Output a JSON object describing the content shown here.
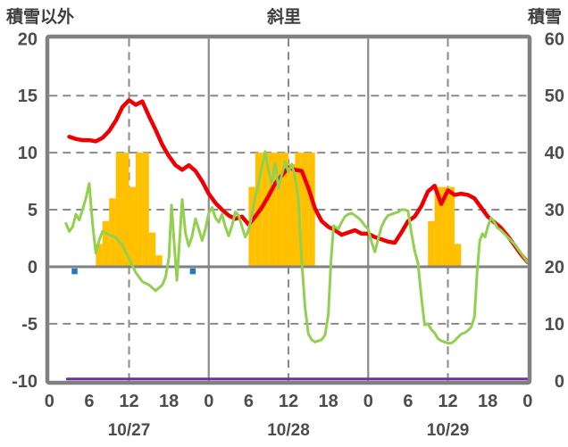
{
  "header": {
    "left_axis_title": "積雪以外",
    "title": "斜里",
    "right_axis_title": "積雪"
  },
  "colors": {
    "red_line": "#ef0000",
    "green_line": "#92d050",
    "orange_bars": "#ffc000",
    "blue_markers": "#2878be",
    "purple_line": "#7030a0",
    "frame_gray": "#808080",
    "grid_gray": "#8a8a8a",
    "label_gray": "#4d4d4d"
  },
  "chart_data": {
    "type": "line",
    "title": "斜里",
    "left_axis": {
      "title": "積雪以外",
      "tick_labels": [
        "20",
        "15",
        "10",
        "5",
        "0",
        "-5",
        "-10"
      ],
      "tick_values": [
        20,
        15,
        10,
        5,
        0,
        -5,
        -10
      ],
      "range": [
        -10,
        20
      ]
    },
    "right_axis": {
      "title": "積雪",
      "tick_labels": [
        "60",
        "50",
        "40",
        "30",
        "20",
        "10",
        "0"
      ],
      "tick_values": [
        60,
        50,
        40,
        30,
        20,
        10,
        0
      ],
      "range": [
        0,
        60
      ]
    },
    "x_axis": {
      "unit": "hour",
      "range_hours": [
        0,
        72
      ],
      "tick_hours": [
        0,
        6,
        12,
        18,
        24,
        30,
        36,
        42,
        48,
        54,
        60,
        66,
        72
      ],
      "tick_labels": [
        "0",
        "6",
        "12",
        "18",
        "0",
        "6",
        "12",
        "18",
        "0",
        "6",
        "12",
        "18",
        "0"
      ],
      "date_labels": [
        {
          "text": "10/27",
          "hour": 12
        },
        {
          "text": "10/28",
          "hour": 36
        },
        {
          "text": "10/29",
          "hour": 60
        }
      ]
    },
    "gridlines": {
      "dashed_y_left": [
        15,
        10,
        5,
        -5
      ],
      "solid_y_left": [
        0
      ],
      "dashed_x_hours": [
        12,
        36,
        60
      ],
      "solid_x_hours": [
        24,
        48
      ],
      "grid_on": true
    },
    "series": [
      {
        "name": "orange-bars",
        "kind": "bar",
        "axis": "left",
        "color": "#ffc000",
        "bar_end_hours": [
          8,
          9,
          10,
          11,
          12,
          13,
          14,
          15,
          16,
          17,
          31,
          32,
          33,
          34,
          35,
          36,
          37,
          38,
          39,
          40,
          58,
          59,
          60,
          61,
          62
        ],
        "bar_values": [
          2,
          4,
          6,
          10,
          10,
          7,
          10,
          10,
          3,
          1,
          7,
          10,
          10,
          10,
          10,
          10,
          9,
          10,
          10,
          10,
          4,
          7,
          7,
          7,
          2
        ]
      },
      {
        "name": "purple-snow-depth-line",
        "kind": "line",
        "axis": "right",
        "color": "#7030a0",
        "width": 3,
        "points": [
          [
            2.7,
            0
          ],
          [
            72,
            0
          ]
        ]
      },
      {
        "name": "red-line",
        "kind": "line",
        "axis": "left",
        "color": "#ef0000",
        "width": 4.5,
        "points": [
          [
            3,
            11.4
          ],
          [
            4,
            11.2
          ],
          [
            5,
            11.1
          ],
          [
            6,
            11.1
          ],
          [
            7,
            11.0
          ],
          [
            8,
            11.3
          ],
          [
            9,
            11.9
          ],
          [
            10,
            12.8
          ],
          [
            11,
            14.0
          ],
          [
            12,
            14.6
          ],
          [
            13,
            14.2
          ],
          [
            14,
            14.5
          ],
          [
            15,
            13.2
          ],
          [
            16,
            12.0
          ],
          [
            17,
            10.7
          ],
          [
            18,
            9.7
          ],
          [
            19,
            8.9
          ],
          [
            20,
            8.5
          ],
          [
            21,
            8.9
          ],
          [
            22,
            8.4
          ],
          [
            23,
            7.5
          ],
          [
            24,
            6.4
          ],
          [
            25,
            5.6
          ],
          [
            26,
            5.0
          ],
          [
            27,
            4.5
          ],
          [
            28,
            4.2
          ],
          [
            29,
            4.4
          ],
          [
            30,
            3.7
          ],
          [
            31,
            4.4
          ],
          [
            32,
            5.2
          ],
          [
            33,
            6.2
          ],
          [
            34,
            7.3
          ],
          [
            35,
            8.0
          ],
          [
            36,
            8.7
          ],
          [
            37,
            8.5
          ],
          [
            38,
            8.4
          ],
          [
            39,
            6.9
          ],
          [
            40,
            5.1
          ],
          [
            41,
            4.0
          ],
          [
            42,
            3.5
          ],
          [
            43,
            3.2
          ],
          [
            44,
            2.8
          ],
          [
            45,
            3.0
          ],
          [
            46,
            3.2
          ],
          [
            47,
            2.9
          ],
          [
            48,
            2.9
          ],
          [
            49,
            2.6
          ],
          [
            50,
            2.4
          ],
          [
            51,
            2.2
          ],
          [
            52,
            2.1
          ],
          [
            53,
            3.0
          ],
          [
            54,
            4.0
          ],
          [
            55,
            4.4
          ],
          [
            56,
            5.3
          ],
          [
            57,
            6.6
          ],
          [
            58,
            7.1
          ],
          [
            59,
            5.5
          ],
          [
            60,
            6.7
          ],
          [
            61,
            6.3
          ],
          [
            62,
            6.4
          ],
          [
            63,
            6.3
          ],
          [
            64,
            6.0
          ],
          [
            65,
            5.2
          ],
          [
            66,
            4.4
          ],
          [
            67,
            3.9
          ],
          [
            68,
            3.4
          ],
          [
            69,
            2.7
          ],
          [
            70,
            1.9
          ],
          [
            71,
            1.1
          ],
          [
            72,
            0.4
          ]
        ]
      },
      {
        "name": "green-line",
        "kind": "line",
        "axis": "left",
        "color": "#92d050",
        "width": 3,
        "points": [
          [
            2.5,
            3.8
          ],
          [
            3,
            3.1
          ],
          [
            3.5,
            3.5
          ],
          [
            4,
            4.6
          ],
          [
            4.5,
            4.1
          ],
          [
            5,
            5.0
          ],
          [
            5.5,
            6.0
          ],
          [
            6,
            7.3
          ],
          [
            6.5,
            3.8
          ],
          [
            7,
            1.2
          ],
          [
            7.5,
            2.3
          ],
          [
            8,
            3.1
          ],
          [
            9,
            2.8
          ],
          [
            10,
            2.6
          ],
          [
            10.5,
            2.2
          ],
          [
            11,
            1.9
          ],
          [
            11.5,
            1.3
          ],
          [
            12,
            0.7
          ],
          [
            13,
            -0.5
          ],
          [
            14,
            -1.3
          ],
          [
            15,
            -1.6
          ],
          [
            16,
            -2.1
          ],
          [
            17,
            -1.6
          ],
          [
            17.5,
            -0.9
          ],
          [
            18,
            0.8
          ],
          [
            18.4,
            5.4
          ],
          [
            18.8,
            2.0
          ],
          [
            19.2,
            -1.2
          ],
          [
            19.6,
            2.2
          ],
          [
            20,
            5.9
          ],
          [
            20.5,
            2.9
          ],
          [
            21,
            1.8
          ],
          [
            21.5,
            2.7
          ],
          [
            22,
            4.2
          ],
          [
            22.5,
            3.3
          ],
          [
            23,
            2.3
          ],
          [
            23.5,
            3.3
          ],
          [
            24,
            4.7
          ],
          [
            24.5,
            5.2
          ],
          [
            25,
            4.3
          ],
          [
            25.5,
            3.9
          ],
          [
            26,
            4.6
          ],
          [
            26.5,
            3.5
          ],
          [
            27,
            2.7
          ],
          [
            27.5,
            3.6
          ],
          [
            28,
            4.8
          ],
          [
            28.5,
            4.5
          ],
          [
            29,
            3.5
          ],
          [
            29.5,
            2.6
          ],
          [
            30,
            3.2
          ],
          [
            30.5,
            4.6
          ],
          [
            31,
            6.1
          ],
          [
            31.5,
            7.3
          ],
          [
            32,
            8.8
          ],
          [
            32.5,
            10.1
          ],
          [
            33,
            8.4
          ],
          [
            33.5,
            7.3
          ],
          [
            34,
            9.1
          ],
          [
            34.5,
            6.9
          ],
          [
            35,
            8.1
          ],
          [
            35.5,
            9.2
          ],
          [
            36,
            8.3
          ],
          [
            36.5,
            9.0
          ],
          [
            37,
            7.8
          ],
          [
            37.5,
            5.8
          ],
          [
            38,
            0.5
          ],
          [
            38.5,
            -3.6
          ],
          [
            39,
            -5.9
          ],
          [
            39.5,
            -6.4
          ],
          [
            40,
            -6.6
          ],
          [
            40.5,
            -6.5
          ],
          [
            41,
            -6.4
          ],
          [
            41.5,
            -6.0
          ],
          [
            42,
            -4.2
          ],
          [
            42.4,
            0.5
          ],
          [
            42.8,
            3.6
          ],
          [
            43.5,
            3.3
          ],
          [
            44,
            3.9
          ],
          [
            44.5,
            4.4
          ],
          [
            45,
            4.6
          ],
          [
            45.5,
            4.7
          ],
          [
            46,
            4.5
          ],
          [
            46.5,
            4.3
          ],
          [
            47,
            4.0
          ],
          [
            47.5,
            3.6
          ],
          [
            48,
            3.3
          ],
          [
            48.5,
            2.2
          ],
          [
            49,
            1.3
          ],
          [
            49.5,
            2.4
          ],
          [
            50,
            3.5
          ],
          [
            50.5,
            4.1
          ],
          [
            51,
            4.5
          ],
          [
            51.5,
            4.6
          ],
          [
            52,
            4.7
          ],
          [
            52.5,
            4.8
          ],
          [
            53,
            5.0
          ],
          [
            53.5,
            5.0
          ],
          [
            54,
            4.9
          ],
          [
            54.5,
            3.0
          ],
          [
            55,
            1.4
          ],
          [
            55.5,
            0.3
          ],
          [
            56,
            -2.6
          ],
          [
            56.5,
            -5.1
          ],
          [
            57,
            -5.0
          ],
          [
            57.5,
            -5.5
          ],
          [
            58,
            -5.8
          ],
          [
            58.5,
            -6.3
          ],
          [
            59,
            -6.5
          ],
          [
            59.5,
            -6.6
          ],
          [
            60,
            -6.7
          ],
          [
            60.5,
            -6.7
          ],
          [
            61,
            -6.5
          ],
          [
            61.5,
            -6.2
          ],
          [
            62,
            -5.9
          ],
          [
            62.5,
            -5.8
          ],
          [
            63,
            -5.6
          ],
          [
            63.5,
            -5.3
          ],
          [
            64,
            -4.4
          ],
          [
            64.4,
            -0.5
          ],
          [
            64.8,
            2.3
          ],
          [
            65.2,
            2.9
          ],
          [
            65.6,
            2.6
          ],
          [
            66,
            3.5
          ],
          [
            66.5,
            4.3
          ],
          [
            67,
            3.9
          ],
          [
            67.5,
            3.4
          ],
          [
            68,
            3.2
          ],
          [
            68.5,
            2.9
          ],
          [
            69,
            2.6
          ],
          [
            69.5,
            2.3
          ],
          [
            70,
            2.0
          ],
          [
            70.5,
            1.6
          ],
          [
            71,
            1.2
          ],
          [
            71.5,
            0.8
          ],
          [
            72,
            0.4
          ]
        ]
      },
      {
        "name": "blue-square-markers",
        "kind": "square",
        "axis": "left",
        "color": "#2878be",
        "size": 6.5,
        "points": [
          [
            3.8,
            -0.4
          ],
          [
            21.6,
            -0.4
          ]
        ]
      }
    ]
  }
}
